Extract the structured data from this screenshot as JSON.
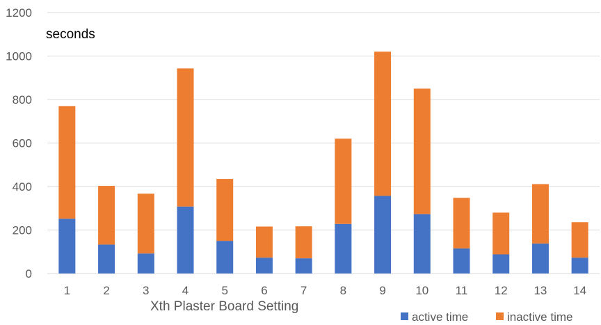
{
  "chart_data": {
    "type": "bar",
    "stacked": true,
    "categories": [
      "1",
      "2",
      "3",
      "4",
      "5",
      "6",
      "7",
      "8",
      "9",
      "10",
      "11",
      "12",
      "13",
      "14"
    ],
    "series": [
      {
        "name": "active time",
        "color": "#4472C4",
        "values": [
          252,
          133,
          92,
          308,
          150,
          73,
          70,
          228,
          357,
          273,
          115,
          88,
          138,
          73
        ]
      },
      {
        "name": "inactive time",
        "color": "#ED7D31",
        "values": [
          518,
          270,
          275,
          635,
          285,
          143,
          147,
          392,
          663,
          577,
          233,
          192,
          273,
          163
        ]
      }
    ],
    "xlabel": "Xth Plaster Board Setting",
    "ylabel": "seconds",
    "ylim": [
      0,
      1200
    ],
    "yticks": [
      "0",
      "200",
      "400",
      "600",
      "800",
      "1000",
      "1200"
    ],
    "grid": true,
    "legend_position": "bottom-right"
  }
}
